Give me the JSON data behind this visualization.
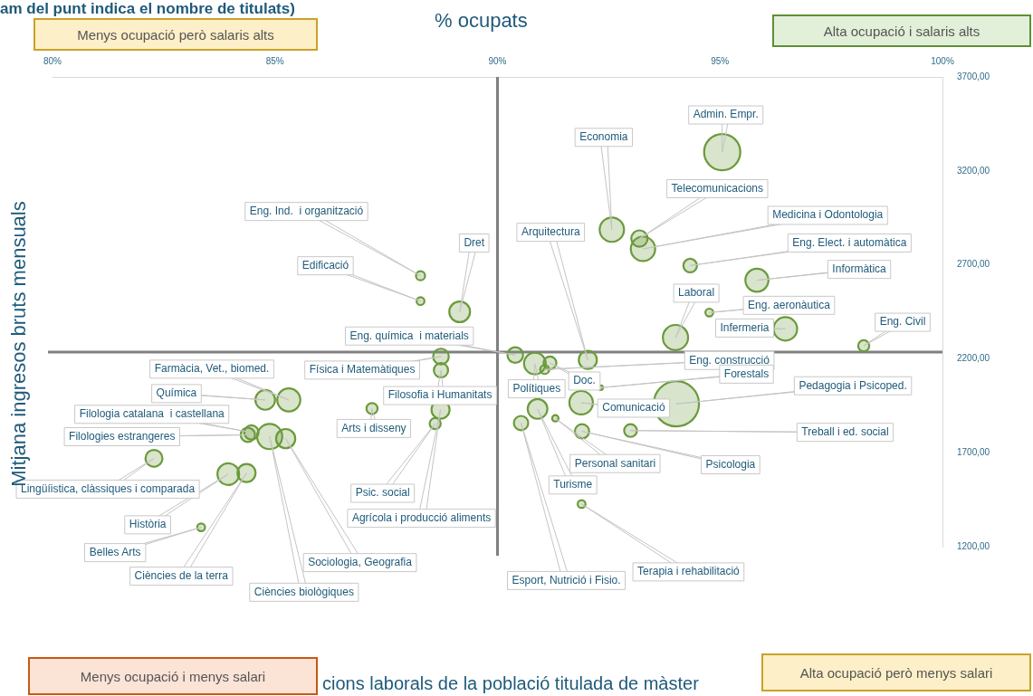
{
  "chart_data": {
    "type": "bubble",
    "xlabel": "% ocupats",
    "ylabel": "Mitjana ingresos bruts mensuals",
    "xlim": [
      80,
      100
    ],
    "xticks": [
      {
        "value": 80,
        "label": "80%"
      },
      {
        "value": 85,
        "label": "85%"
      },
      {
        "value": 90,
        "label": "90%"
      },
      {
        "value": 95,
        "label": "95%"
      },
      {
        "value": 100,
        "label": "100%"
      }
    ],
    "ylim": [
      1200,
      3700
    ],
    "yticks": [
      {
        "value": 1200,
        "label": "1200,00"
      },
      {
        "value": 1700,
        "label": "1700,00"
      },
      {
        "value": 2200,
        "label": "2200,00"
      },
      {
        "value": 2700,
        "label": "2700,00"
      },
      {
        "value": 3200,
        "label": "3200,00"
      },
      {
        "value": 3700,
        "label": "3700,00"
      }
    ],
    "legend": false,
    "series": [
      {
        "color": "#6b9a3c",
        "x": [
          95.05,
          92.57,
          93.19,
          93.27,
          94.33,
          95.83,
          94.76,
          96.47,
          94.0,
          98.23,
          88.27,
          88.27,
          89.15,
          90.4,
          90.84,
          91.18,
          91.06,
          92.32,
          92.03,
          91.88,
          90.9,
          90.53,
          91.3,
          91.9,
          92.99,
          94.02,
          91.89,
          88.73,
          88.73,
          88.72,
          88.6,
          87.18,
          85.31,
          84.78,
          84.47,
          84.39,
          84.88,
          85.24,
          82.28,
          83.95,
          84.36,
          83.34
        ],
        "values": [
          3300,
          2887,
          2840,
          2785,
          2696,
          2618,
          2446,
          2359,
          2313,
          2269,
          2642,
          2507,
          2450,
          2220,
          2175,
          2178,
          2143,
          2046,
          2194,
          1966,
          1933,
          1858,
          1883,
          1814,
          1818,
          1960,
          1427,
          2212,
          2139,
          1929,
          1855,
          1935,
          1981,
          1981,
          1808,
          1795,
          1786,
          1775,
          1670,
          1586,
          1592,
          1303
        ],
        "sizes": [
          0.64,
          0.29,
          0.13,
          0.29,
          0.09,
          0.26,
          0.03,
          0.27,
          0.31,
          0.06,
          0.04,
          0.03,
          0.21,
          0.12,
          0.23,
          0.08,
          0.04,
          0.01,
          0.16,
          0.27,
          0.19,
          0.1,
          0.02,
          0.1,
          0.08,
          1,
          0.03,
          0.12,
          0.1,
          0.16,
          0.06,
          0.06,
          0.26,
          0.19,
          0.1,
          0.1,
          0.31,
          0.18,
          0.14,
          0.23,
          0.16,
          0.03
        ]
      }
    ],
    "ref_lines": [
      {
        "axis": "x",
        "value": 90,
        "color": "#808080"
      },
      {
        "axis": "y",
        "value": 2236,
        "color": "#808080"
      }
    ],
    "annotations": [
      "am del punt indica el nombre de titulats)",
      "Menys ocupació però salaris alts",
      "Alta ocupació i salaris alts",
      "Menys ocupació i menys salari",
      "cions laborals de la població titulada de màster",
      "Alta ocupació però menys salari",
      "Admin. Empr.",
      "Economia",
      "Telecomunicacions",
      "Medicina i Odontologia",
      "Eng. Elect. i automàtica",
      "Informàtica",
      "Eng. aeronàutica",
      "Infermeria",
      "Laboral",
      "Eng. Civil",
      "Eng. Ind.  i organització",
      "Edificació",
      "Dret",
      "Eng. química  i materials",
      "Polítiques",
      "Doc.",
      "Eng. construcció",
      "Forestals",
      "Arquitectura",
      "Comunicació",
      "Turisme",
      "Esport, Nutrició i Fisio.",
      "Personal sanitari",
      "Psicologia",
      "Treball i ed. social",
      "Pedagogia i Psicoped.",
      "Terapia i rehabilitació",
      "Física i Matemàtiques",
      "Filosofia i Humanitats",
      "Agrícola i producció aliments",
      "Psic. social",
      "Arts i disseny",
      "Farmàcia, Vet., biomed.",
      "Química",
      "Filologia catalana  i castellana",
      "Filologies estrangeres",
      "Ciències biològiques",
      "Sociologia, Geografia",
      "Lingüíistica, clàssiques i comparada",
      "Història",
      "Ciències de la terra",
      "Belles Arts"
    ]
  }
}
